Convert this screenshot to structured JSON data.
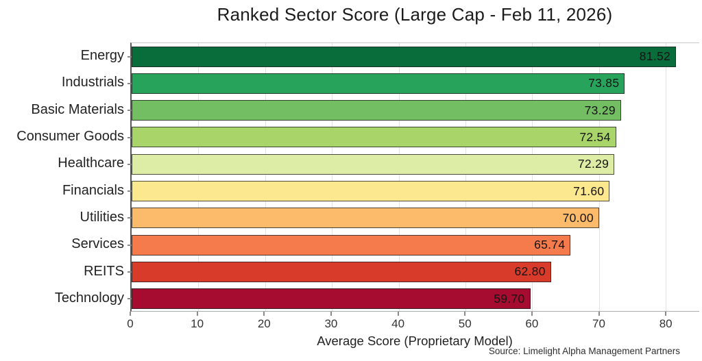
{
  "title": "Ranked Sector Score (Large Cap - Feb 11, 2026)",
  "source": "Source: Limelight Alpha Management Partners",
  "chart_data": {
    "type": "bar",
    "orientation": "horizontal",
    "title": "Ranked Sector Score (Large Cap - Feb 11, 2026)",
    "xlabel": "Average Score (Proprietary Model)",
    "ylabel": "",
    "categories": [
      "Energy",
      "Industrials",
      "Basic Materials",
      "Consumer Goods",
      "Healthcare",
      "Financials",
      "Utilities",
      "Services",
      "REITS",
      "Technology"
    ],
    "values": [
      81.52,
      73.85,
      73.29,
      72.54,
      72.29,
      71.6,
      70.0,
      65.74,
      62.8,
      59.7
    ],
    "value_labels": [
      "81.52",
      "73.85",
      "73.29",
      "72.54",
      "72.29",
      "71.60",
      "70.00",
      "65.74",
      "62.80",
      "59.70"
    ],
    "bar_colors": [
      "#096c3b",
      "#27a35c",
      "#73bd63",
      "#a9d46a",
      "#ddeda5",
      "#fbe88f",
      "#fcba6b",
      "#f57a4c",
      "#d93b2b",
      "#a60c2f"
    ],
    "bar_border_color": "#2a2a2a",
    "xticks": [
      0,
      10,
      20,
      30,
      40,
      50,
      60,
      70,
      80
    ],
    "xlim": [
      0,
      85
    ],
    "grid": "vertical",
    "gridline_color": "#e2e2e2",
    "legend": "none",
    "value_label_position": "inside-end"
  }
}
